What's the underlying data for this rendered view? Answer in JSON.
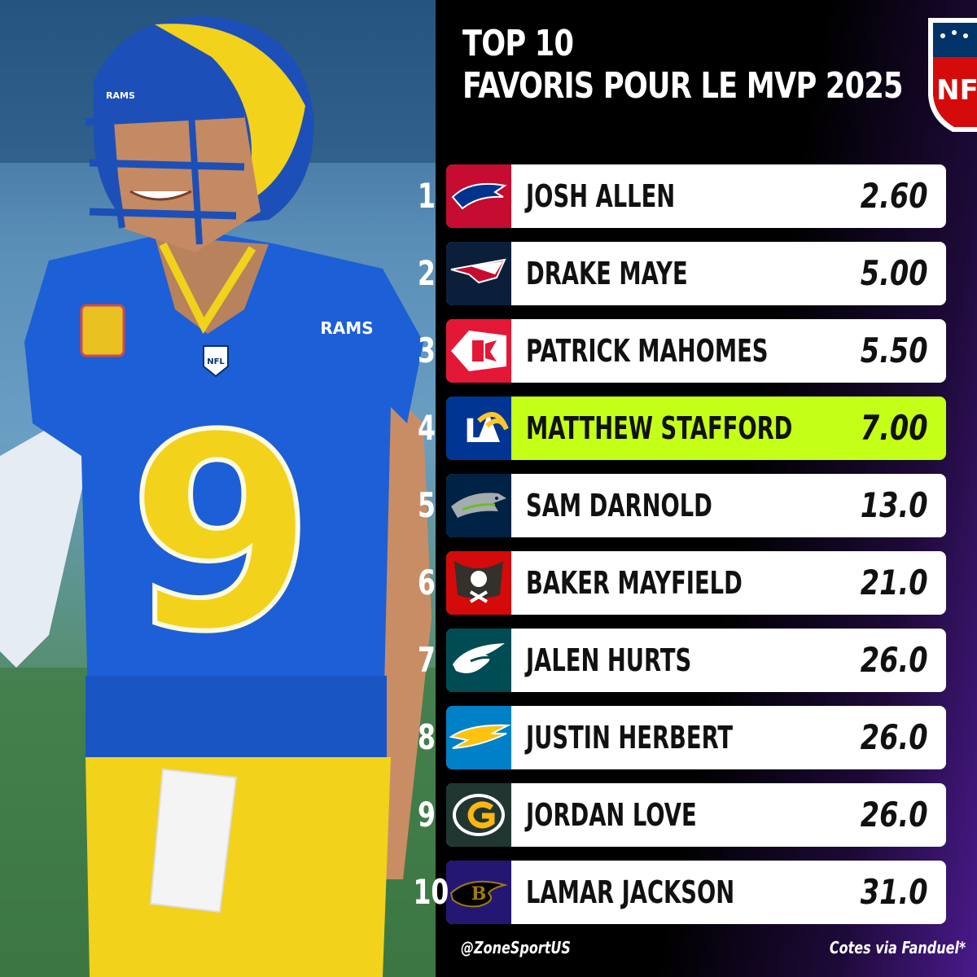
{
  "header": {
    "title_line1": "TOP 10",
    "title_line2": "FAVORIS POUR LE MVP 2025",
    "league_logo": "nfl-shield-icon"
  },
  "photo": {
    "jersey_text": "RAMS",
    "jersey_number": "9",
    "helmet_text": "RAMS",
    "chest_logo_text": "NFL"
  },
  "rankings": [
    {
      "rank": "1",
      "name": "JOSH ALLEN",
      "odds": "2.60",
      "team_icon": "bills-logo-icon",
      "color": "#c60c30"
    },
    {
      "rank": "2",
      "name": "DRAKE MAYE",
      "odds": "5.00",
      "team_icon": "patriots-logo-icon",
      "color": "#002244"
    },
    {
      "rank": "3",
      "name": "PATRICK MAHOMES",
      "odds": "5.50",
      "team_icon": "chiefs-logo-icon",
      "color": "#e31837"
    },
    {
      "rank": "4",
      "name": "MATTHEW STAFFORD",
      "odds": "7.00",
      "team_icon": "rams-logo-icon",
      "color": "#003594"
    },
    {
      "rank": "5",
      "name": "SAM DARNOLD",
      "odds": "13.0",
      "team_icon": "seahawks-logo-icon",
      "color": "#002244"
    },
    {
      "rank": "6",
      "name": "BAKER MAYFIELD",
      "odds": "21.0",
      "team_icon": "buccaneers-logo-icon",
      "color": "#d50a0a"
    },
    {
      "rank": "7",
      "name": "JALEN HURTS",
      "odds": "26.0",
      "team_icon": "eagles-logo-icon",
      "color": "#004c54"
    },
    {
      "rank": "8",
      "name": "JUSTIN HERBERT",
      "odds": "26.0",
      "team_icon": "chargers-logo-icon",
      "color": "#0080c6"
    },
    {
      "rank": "9",
      "name": "JORDAN LOVE",
      "odds": "26.0",
      "team_icon": "packers-logo-icon",
      "color": "#203731"
    },
    {
      "rank": "10",
      "name": "LAMAR JACKSON",
      "odds": "31.0",
      "team_icon": "ravens-logo-icon",
      "color": "#241773"
    }
  ],
  "highlight_color": "#c4ff18",
  "footer": {
    "handle": "@ZoneSportUS",
    "source": "Cotes via Fanduel*"
  }
}
